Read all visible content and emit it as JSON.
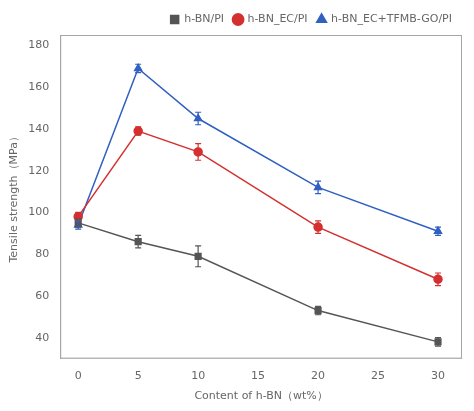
{
  "chart_data": {
    "type": "line",
    "x": [
      0,
      5,
      10,
      20,
      30
    ],
    "series": [
      {
        "name": "h-BN/PI",
        "color": "#555555",
        "marker": "square",
        "values": [
          95,
          86,
          79,
          53,
          38
        ],
        "yerr": [
          2,
          3,
          5,
          2,
          2
        ]
      },
      {
        "name": "h-BN_EC/PI",
        "color": "#d43030",
        "marker": "circle",
        "values": [
          98,
          139,
          129,
          93,
          68
        ],
        "yerr": [
          2,
          2,
          4,
          3,
          3
        ]
      },
      {
        "name": "h-BN_EC+TFMB-GO/PI",
        "color": "#3060c0",
        "marker": "triangle",
        "values": [
          94,
          169,
          145,
          112,
          91
        ],
        "yerr": [
          2,
          2,
          3,
          3,
          2
        ]
      }
    ],
    "xlabel": "Content of h-BN（wt%）",
    "ylabel": "Tensile strength（MPa）",
    "xlim": [
      -1.5,
      32
    ],
    "ylim": [
      30,
      185
    ],
    "xticks": [
      0,
      5,
      10,
      15,
      20,
      25,
      30
    ],
    "yticks": [
      40,
      60,
      80,
      100,
      120,
      140,
      160,
      180
    ],
    "grid": false,
    "legend": "upper right"
  }
}
